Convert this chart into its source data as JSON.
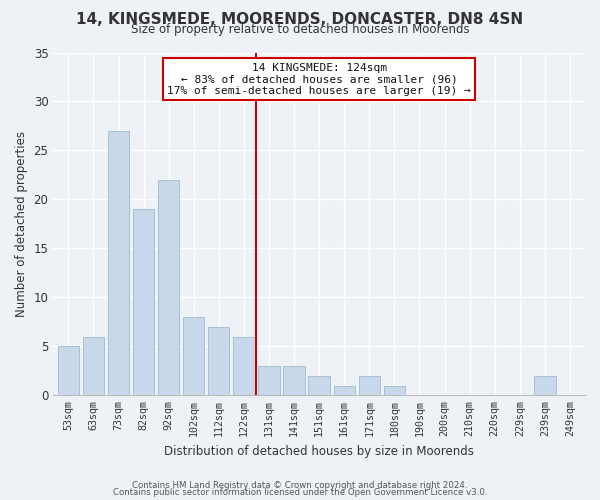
{
  "title": "14, KINGSMEDE, MOORENDS, DONCASTER, DN8 4SN",
  "subtitle": "Size of property relative to detached houses in Moorends",
  "xlabel": "Distribution of detached houses by size in Moorends",
  "ylabel": "Number of detached properties",
  "bar_labels": [
    "53sqm",
    "63sqm",
    "73sqm",
    "82sqm",
    "92sqm",
    "102sqm",
    "112sqm",
    "122sqm",
    "131sqm",
    "141sqm",
    "151sqm",
    "161sqm",
    "171sqm",
    "180sqm",
    "190sqm",
    "200sqm",
    "210sqm",
    "220sqm",
    "229sqm",
    "239sqm",
    "249sqm"
  ],
  "bar_values": [
    5,
    6,
    27,
    19,
    22,
    8,
    7,
    6,
    3,
    3,
    2,
    1,
    2,
    1,
    0,
    0,
    0,
    0,
    0,
    2,
    0
  ],
  "bar_color": "#c8d8ea",
  "bar_edge_color": "#a8c0d4",
  "vline_x": 7.5,
  "vline_color": "#cc0000",
  "annotation_title": "14 KINGSMEDE: 124sqm",
  "annotation_line1": "← 83% of detached houses are smaller (96)",
  "annotation_line2": "17% of semi-detached houses are larger (19) →",
  "annotation_box_color": "#ffffff",
  "annotation_box_edge": "#cc0000",
  "ylim": [
    0,
    35
  ],
  "yticks": [
    0,
    5,
    10,
    15,
    20,
    25,
    30,
    35
  ],
  "footer1": "Contains HM Land Registry data © Crown copyright and database right 2024.",
  "footer2": "Contains public sector information licensed under the Open Government Licence v3.0.",
  "background_color": "#eef2f7",
  "grid_color": "#ffffff",
  "text_color": "#333333"
}
